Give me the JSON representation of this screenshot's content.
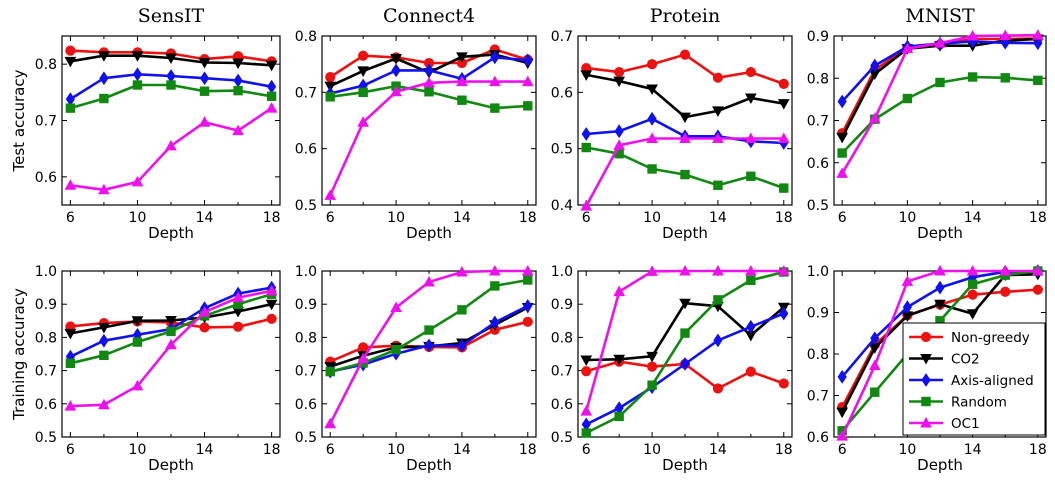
{
  "chart_data": {
    "type": "line",
    "colors": {
      "Non-greedy": "#ee1111",
      "CO2": "#000000",
      "Axis-aligned": "#1111ee",
      "Random": "#118811",
      "OC1": "#ee11ee"
    },
    "markers": {
      "Non-greedy": "circle",
      "CO2": "triangle-down",
      "Axis-aligned": "diamond",
      "Random": "square",
      "OC1": "triangle-up"
    },
    "legend": {
      "placement": "lower-right of MNIST training accuracy panel",
      "entries": [
        "Non-greedy",
        "CO2",
        "Axis-aligned",
        "Random",
        "OC1"
      ]
    },
    "row_ylabels": [
      "Test accuracy",
      "Training accuracy"
    ],
    "panels": [
      {
        "title": "SensIT",
        "row": "test",
        "xlabel": "Depth",
        "ylabel": "Test accuracy",
        "xlim": [
          5.5,
          18.5
        ],
        "ylim": [
          0.55,
          0.85
        ],
        "xticks": [
          "6",
          "10",
          "14",
          "18"
        ],
        "yticks": [
          "0.6",
          "0.7",
          "0.8"
        ],
        "x": [
          6,
          8,
          10,
          12,
          14,
          16,
          18
        ],
        "series": [
          {
            "name": "Non-greedy",
            "values": [
              0.824,
              0.821,
              0.821,
              0.819,
              0.809,
              0.814,
              0.805
            ]
          },
          {
            "name": "CO2",
            "values": [
              0.805,
              0.815,
              0.815,
              0.811,
              0.803,
              0.802,
              0.798
            ]
          },
          {
            "name": "Axis-aligned",
            "values": [
              0.738,
              0.775,
              0.782,
              0.779,
              0.775,
              0.771,
              0.76
            ]
          },
          {
            "name": "Random",
            "values": [
              0.722,
              0.739,
              0.763,
              0.763,
              0.752,
              0.753,
              0.743
            ]
          },
          {
            "name": "OC1",
            "values": [
              0.585,
              0.577,
              0.591,
              0.655,
              0.697,
              0.682,
              0.722
            ]
          }
        ]
      },
      {
        "title": "Connect4",
        "row": "test",
        "xlabel": "Depth",
        "ylabel": "",
        "xlim": [
          5.5,
          18.5
        ],
        "ylim": [
          0.5,
          0.8
        ],
        "xticks": [
          "6",
          "10",
          "14",
          "18"
        ],
        "yticks": [
          "0.5",
          "0.6",
          "0.7",
          "0.8"
        ],
        "x": [
          6,
          8,
          10,
          12,
          14,
          16,
          18
        ],
        "series": [
          {
            "name": "Non-greedy",
            "values": [
              0.727,
              0.765,
              0.762,
              0.752,
              0.752,
              0.776,
              0.758
            ]
          },
          {
            "name": "CO2",
            "values": [
              0.711,
              0.738,
              0.76,
              0.735,
              0.763,
              0.767,
              0.752
            ]
          },
          {
            "name": "Axis-aligned",
            "values": [
              0.698,
              0.712,
              0.739,
              0.739,
              0.724,
              0.762,
              0.757
            ]
          },
          {
            "name": "Random",
            "values": [
              0.692,
              0.7,
              0.711,
              0.701,
              0.686,
              0.672,
              0.676
            ]
          },
          {
            "name": "OC1",
            "values": [
              0.517,
              0.647,
              0.701,
              0.717,
              0.719,
              0.719,
              0.719
            ]
          }
        ]
      },
      {
        "title": "Protein",
        "row": "test",
        "xlabel": "Depth",
        "ylabel": "",
        "xlim": [
          5.5,
          18.5
        ],
        "ylim": [
          0.4,
          0.7
        ],
        "xticks": [
          "6",
          "10",
          "14",
          "18"
        ],
        "yticks": [
          "0.4",
          "0.5",
          "0.6",
          "0.7"
        ],
        "x": [
          6,
          8,
          10,
          12,
          14,
          16,
          18
        ],
        "series": [
          {
            "name": "Non-greedy",
            "values": [
              0.643,
              0.636,
              0.65,
              0.667,
              0.626,
              0.636,
              0.615
            ]
          },
          {
            "name": "CO2",
            "values": [
              0.631,
              0.62,
              0.606,
              0.556,
              0.567,
              0.59,
              0.58
            ]
          },
          {
            "name": "Axis-aligned",
            "values": [
              0.526,
              0.531,
              0.553,
              0.522,
              0.522,
              0.513,
              0.51
            ]
          },
          {
            "name": "Random",
            "values": [
              0.502,
              0.491,
              0.464,
              0.454,
              0.435,
              0.451,
              0.43
            ]
          },
          {
            "name": "OC1",
            "values": [
              0.398,
              0.506,
              0.518,
              0.518,
              0.518,
              0.518,
              0.518
            ]
          }
        ]
      },
      {
        "title": "MNIST",
        "row": "test",
        "xlabel": "Depth",
        "ylabel": "",
        "xlim": [
          5.5,
          18.5
        ],
        "ylim": [
          0.5,
          0.9
        ],
        "xticks": [
          "6",
          "10",
          "14",
          "18"
        ],
        "yticks": [
          "0.5",
          "0.6",
          "0.7",
          "0.8",
          "0.9"
        ],
        "x": [
          6,
          8,
          10,
          12,
          14,
          16,
          18
        ],
        "series": [
          {
            "name": "Non-greedy",
            "values": [
              0.67,
              0.82,
              0.872,
              0.88,
              0.893,
              0.893,
              0.894
            ]
          },
          {
            "name": "CO2",
            "values": [
              0.66,
              0.81,
              0.87,
              0.877,
              0.877,
              0.889,
              0.893
            ]
          },
          {
            "name": "Axis-aligned",
            "values": [
              0.745,
              0.83,
              0.875,
              0.882,
              0.887,
              0.884,
              0.883
            ]
          },
          {
            "name": "Random",
            "values": [
              0.623,
              0.703,
              0.752,
              0.79,
              0.803,
              0.801,
              0.795
            ]
          },
          {
            "name": "OC1",
            "values": [
              0.575,
              0.705,
              0.87,
              0.883,
              0.9,
              0.901,
              0.902
            ]
          }
        ]
      },
      {
        "title": "",
        "row": "train",
        "xlabel": "Depth",
        "ylabel": "Training accuracy",
        "xlim": [
          5.5,
          18.5
        ],
        "ylim": [
          0.5,
          1.0
        ],
        "xticks": [
          "6",
          "10",
          "14",
          "18"
        ],
        "yticks": [
          "0.5",
          "0.6",
          "0.7",
          "0.8",
          "0.9",
          "1.0"
        ],
        "x": [
          6,
          8,
          10,
          12,
          14,
          16,
          18
        ],
        "series": [
          {
            "name": "Non-greedy",
            "values": [
              0.833,
              0.843,
              0.848,
              0.845,
              0.83,
              0.832,
              0.856
            ]
          },
          {
            "name": "CO2",
            "values": [
              0.812,
              0.83,
              0.85,
              0.851,
              0.86,
              0.878,
              0.9
            ]
          },
          {
            "name": "Axis-aligned",
            "values": [
              0.742,
              0.79,
              0.808,
              0.825,
              0.888,
              0.932,
              0.95
            ]
          },
          {
            "name": "Random",
            "values": [
              0.722,
              0.746,
              0.786,
              0.818,
              0.865,
              0.9,
              0.93
            ]
          },
          {
            "name": "OC1",
            "values": [
              0.593,
              0.597,
              0.654,
              0.778,
              0.876,
              0.92,
              0.94
            ]
          }
        ]
      },
      {
        "title": "",
        "row": "train",
        "xlabel": "Depth",
        "ylabel": "",
        "xlim": [
          5.5,
          18.5
        ],
        "ylim": [
          0.5,
          1.0
        ],
        "xticks": [
          "6",
          "10",
          "14",
          "18"
        ],
        "yticks": [
          "0.5",
          "0.6",
          "0.7",
          "0.8",
          "0.9",
          "1.0"
        ],
        "x": [
          6,
          8,
          10,
          12,
          14,
          16,
          18
        ],
        "series": [
          {
            "name": "Non-greedy",
            "values": [
              0.727,
              0.77,
              0.775,
              0.771,
              0.77,
              0.823,
              0.847
            ]
          },
          {
            "name": "CO2",
            "values": [
              0.712,
              0.745,
              0.77,
              0.773,
              0.783,
              0.838,
              0.89
            ]
          },
          {
            "name": "Axis-aligned",
            "values": [
              0.697,
              0.718,
              0.751,
              0.776,
              0.775,
              0.845,
              0.895
            ]
          },
          {
            "name": "Random",
            "values": [
              0.697,
              0.723,
              0.763,
              0.822,
              0.883,
              0.955,
              0.973
            ]
          },
          {
            "name": "OC1",
            "values": [
              0.54,
              0.736,
              0.89,
              0.967,
              0.997,
              1.0,
              1.0
            ]
          }
        ]
      },
      {
        "title": "",
        "row": "train",
        "xlabel": "Depth",
        "ylabel": "",
        "xlim": [
          5.5,
          18.5
        ],
        "ylim": [
          0.5,
          1.0
        ],
        "xticks": [
          "6",
          "10",
          "14",
          "18"
        ],
        "yticks": [
          "0.5",
          "0.6",
          "0.7",
          "0.8",
          "0.9",
          "1.0"
        ],
        "x": [
          6,
          8,
          10,
          12,
          14,
          16,
          18
        ],
        "series": [
          {
            "name": "Non-greedy",
            "values": [
              0.698,
              0.727,
              0.712,
              0.72,
              0.646,
              0.697,
              0.661
            ]
          },
          {
            "name": "CO2",
            "values": [
              0.732,
              0.734,
              0.743,
              0.903,
              0.894,
              0.806,
              0.891
            ]
          },
          {
            "name": "Axis-aligned",
            "values": [
              0.538,
              0.587,
              0.65,
              0.72,
              0.791,
              0.832,
              0.872
            ]
          },
          {
            "name": "Random",
            "values": [
              0.512,
              0.562,
              0.656,
              0.813,
              0.913,
              0.972,
              0.997
            ]
          },
          {
            "name": "OC1",
            "values": [
              0.578,
              0.938,
              0.999,
              1.0,
              1.0,
              1.0,
              1.0
            ]
          }
        ]
      },
      {
        "title": "",
        "row": "train",
        "xlabel": "Depth",
        "ylabel": "",
        "xlim": [
          5.5,
          18.5
        ],
        "ylim": [
          0.6,
          1.0
        ],
        "xticks": [
          "6",
          "10",
          "14",
          "18"
        ],
        "yticks": [
          "0.6",
          "0.7",
          "0.8",
          "0.9",
          "1.0"
        ],
        "x": [
          6,
          8,
          10,
          12,
          14,
          16,
          18
        ],
        "series": [
          {
            "name": "Non-greedy",
            "values": [
              0.672,
              0.822,
              0.893,
              0.919,
              0.943,
              0.95,
              0.955
            ]
          },
          {
            "name": "CO2",
            "values": [
              0.66,
              0.815,
              0.892,
              0.92,
              0.897,
              0.99,
              0.992
            ]
          },
          {
            "name": "Axis-aligned",
            "values": [
              0.745,
              0.838,
              0.913,
              0.96,
              0.985,
              0.998,
              1.0
            ]
          },
          {
            "name": "Random",
            "values": [
              0.615,
              0.708,
              0.8,
              0.88,
              0.968,
              0.99,
              1.0
            ]
          },
          {
            "name": "OC1",
            "values": [
              0.602,
              0.772,
              0.975,
              1.0,
              1.0,
              1.0,
              1.0
            ]
          }
        ]
      }
    ]
  }
}
